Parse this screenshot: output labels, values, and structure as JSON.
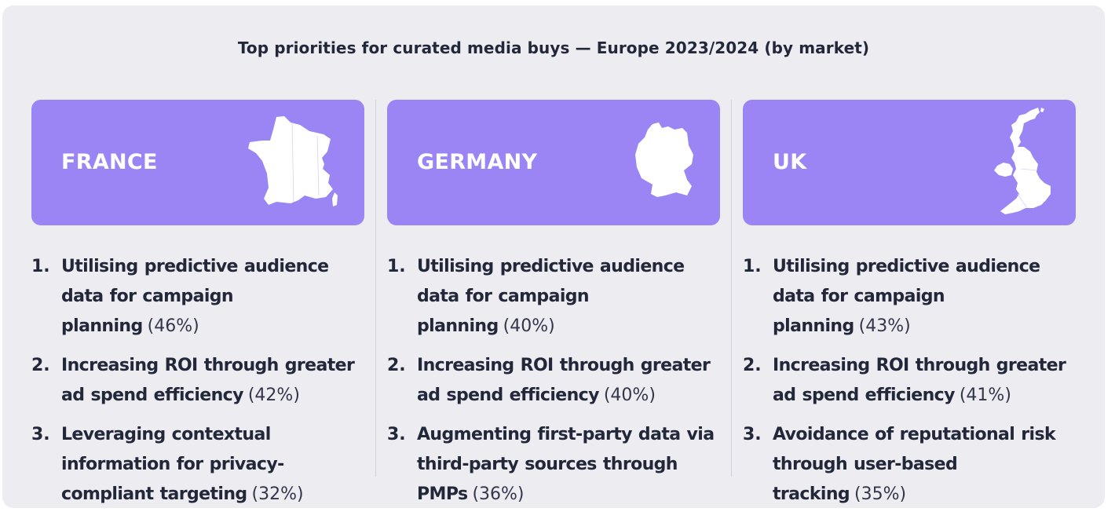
{
  "title": "Top priorities for curated media buys — Europe 2023/2024 (by market)",
  "colors": {
    "card_bg": "#9b84f4",
    "panel_bg": "#ececf1",
    "text": "#23273a"
  },
  "markets": [
    {
      "name": "FRANCE",
      "map_icon": "france-map-icon",
      "priorities": [
        {
          "num": "1.",
          "text": "Utilising predictive audience data for campaign planning",
          "pct": "(46%)"
        },
        {
          "num": "2.",
          "text": "Increasing ROI through greater ad spend efficiency",
          "pct": "(42%)"
        },
        {
          "num": "3.",
          "text": "Leveraging contextual information for privacy-compliant targeting",
          "pct": "(32%)"
        }
      ]
    },
    {
      "name": "GERMANY",
      "map_icon": "germany-map-icon",
      "priorities": [
        {
          "num": "1.",
          "text": "Utilising predictive audience data for campaign planning",
          "pct": "(40%)"
        },
        {
          "num": "2.",
          "text": "Increasing ROI through greater ad spend efficiency",
          "pct": "(40%)"
        },
        {
          "num": "3.",
          "text": "Augmenting first-party data via third-party sources through PMPs",
          "pct": "(36%)"
        }
      ]
    },
    {
      "name": "UK",
      "map_icon": "uk-map-icon",
      "priorities": [
        {
          "num": "1.",
          "text": "Utilising predictive audience data for campaign planning",
          "pct": "(43%)"
        },
        {
          "num": "2.",
          "text": "Increasing ROI through greater ad spend efficiency",
          "pct": "(41%)"
        },
        {
          "num": "3.",
          "text": "Avoidance of reputational risk through user-based tracking",
          "pct": "(35%)"
        }
      ]
    }
  ]
}
